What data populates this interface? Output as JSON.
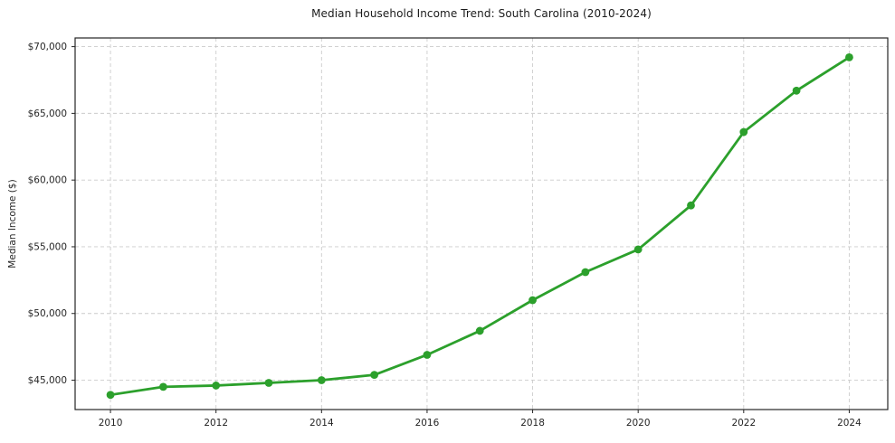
{
  "chart_data": {
    "type": "line",
    "title": "Median Household Income Trend: South Carolina (2010-2024)",
    "xlabel": "",
    "ylabel": "Median Income ($)",
    "x": [
      2010,
      2011,
      2012,
      2013,
      2014,
      2015,
      2016,
      2017,
      2018,
      2019,
      2020,
      2021,
      2022,
      2023,
      2024
    ],
    "series": [
      {
        "name": "Median Household Income",
        "values": [
          43900,
          44500,
          44600,
          44800,
          45000,
          45400,
          46900,
          48700,
          51000,
          53100,
          54800,
          58100,
          63600,
          66700,
          69200
        ]
      }
    ],
    "x_ticks": [
      2010,
      2012,
      2014,
      2016,
      2018,
      2020,
      2022,
      2024
    ],
    "y_ticks": [
      45000,
      50000,
      55000,
      60000,
      65000,
      70000
    ],
    "y_tick_labels": [
      "$45,000",
      "$50,000",
      "$55,000",
      "$60,000",
      "$65,000",
      "$70,000"
    ],
    "xlim": [
      2009.33,
      2024.73
    ],
    "ylim": [
      42800,
      70650
    ],
    "grid": true,
    "grid_style": "dashed",
    "legend_position": "none",
    "colors": {
      "line": "#2ca02c",
      "marker": "#2ca02c",
      "grid": "#cccccc",
      "spine": "#242424",
      "tick_text": "#262626",
      "background": "#ffffff"
    }
  }
}
